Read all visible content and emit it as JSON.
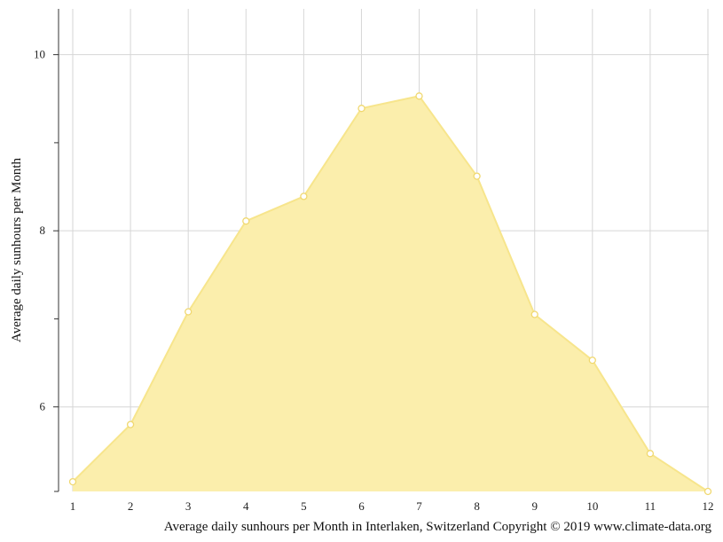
{
  "chart_data": {
    "type": "area",
    "title": "",
    "xlabel": "Average daily sunhours per Month in Interlaken, Switzerland Copyright © 2019 www.climate-data.org",
    "ylabel": "Average daily sunhours per Month",
    "x": [
      1,
      2,
      3,
      4,
      5,
      6,
      7,
      8,
      9,
      10,
      11,
      12
    ],
    "x_tick_labels": [
      "1",
      "2",
      "3",
      "4",
      "5",
      "6",
      "7",
      "8",
      "9",
      "10",
      "11",
      "12"
    ],
    "series": [
      {
        "values": [
          5.15,
          5.8,
          7.08,
          8.11,
          8.39,
          9.39,
          9.53,
          8.62,
          7.05,
          6.53,
          5.47,
          5.04
        ]
      }
    ],
    "xlim": [
      1,
      12
    ],
    "ylim": [
      5.04,
      10.52
    ],
    "y_major_ticks": [
      6,
      8,
      10
    ],
    "y_major_tick_labels": [
      "6",
      "8",
      "10"
    ],
    "y_minor_ticks": [
      7,
      9
    ],
    "grid": true,
    "colors": {
      "area_fill": "#fbeeac",
      "area_line": "#f7e58c",
      "marker_fill": "#ffffff",
      "marker_stroke": "#f0d870",
      "grid": "#d6d6d6",
      "axis": "#333333"
    }
  }
}
